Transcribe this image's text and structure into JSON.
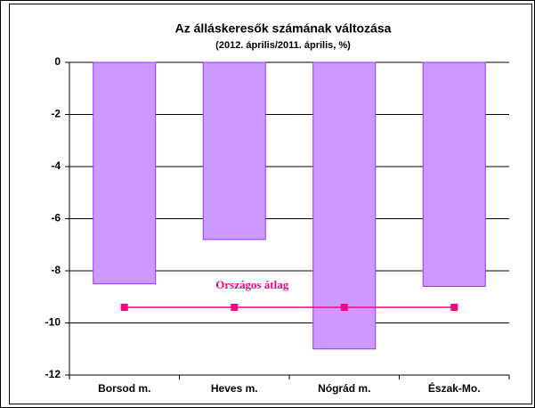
{
  "chart_data": {
    "type": "bar",
    "title": "Az álláskeresők számának változása",
    "subtitle": "(2012. április/2011. április, %)",
    "categories": [
      "Borsod m.",
      "Heves m.",
      "Nógrád m.",
      "Észak-Mo."
    ],
    "values": [
      -8.5,
      -6.8,
      -11.0,
      -8.6
    ],
    "color": "#cc99ff",
    "edge_color": "#9933ff",
    "line": {
      "name": "Országos átlag",
      "color": "#ff0080",
      "values": [
        -9.4,
        -9.4,
        -9.4,
        -9.4
      ]
    },
    "ylim": [
      -12,
      0
    ],
    "yticks": [
      0,
      -2,
      -4,
      -6,
      -8,
      -10,
      -12
    ],
    "grid": true
  }
}
